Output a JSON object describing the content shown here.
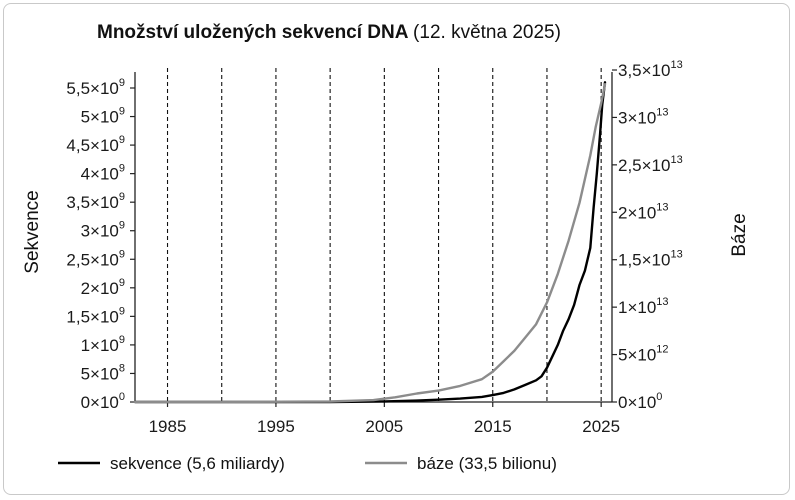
{
  "chart_data": {
    "type": "line",
    "title": "Množství uložených sekvencí DNA",
    "subtitle": "(12. května 2025)",
    "ylabel_left": "Sekvence",
    "ylabel_right": "Báze",
    "x_ticks": [
      "1985",
      "1995",
      "2005",
      "2015",
      "2025"
    ],
    "x_tick_values": [
      1985,
      1995,
      2005,
      2015,
      2025
    ],
    "dashed_years": [
      1985,
      1990,
      1995,
      2000,
      2005,
      2010,
      2015,
      2020,
      2025
    ],
    "xlim": [
      1982,
      2026
    ],
    "ylim_left": [
      0,
      5500000000
    ],
    "ylim_right": [
      0,
      35000000000000
    ],
    "y_left_ticks": [
      {
        "mant": "0×10",
        "exp": "0",
        "value": 0
      },
      {
        "mant": "5×10",
        "exp": "8",
        "value": 500000000
      },
      {
        "mant": "1×10",
        "exp": "9",
        "value": 1000000000
      },
      {
        "mant": "1,5×10",
        "exp": "9",
        "value": 1500000000
      },
      {
        "mant": "2×10",
        "exp": "9",
        "value": 2000000000
      },
      {
        "mant": "2,5×10",
        "exp": "9",
        "value": 2500000000
      },
      {
        "mant": "3×10",
        "exp": "9",
        "value": 3000000000
      },
      {
        "mant": "3,5×10",
        "exp": "9",
        "value": 3500000000
      },
      {
        "mant": "4×10",
        "exp": "9",
        "value": 4000000000
      },
      {
        "mant": "4,5×10",
        "exp": "9",
        "value": 4500000000
      },
      {
        "mant": "5×10",
        "exp": "9",
        "value": 5000000000
      },
      {
        "mant": "5,5×10",
        "exp": "9",
        "value": 5500000000
      }
    ],
    "y_right_ticks": [
      {
        "mant": "0×10",
        "exp": "0",
        "value": 0
      },
      {
        "mant": "5×10",
        "exp": "12",
        "value": 5000000000000
      },
      {
        "mant": "1×10",
        "exp": "13",
        "value": 10000000000000
      },
      {
        "mant": "1,5×10",
        "exp": "13",
        "value": 15000000000000
      },
      {
        "mant": "2×10",
        "exp": "13",
        "value": 20000000000000
      },
      {
        "mant": "2,5×10",
        "exp": "13",
        "value": 25000000000000
      },
      {
        "mant": "3×10",
        "exp": "13",
        "value": 30000000000000
      },
      {
        "mant": "3,5×10",
        "exp": "13",
        "value": 35000000000000
      }
    ],
    "series": [
      {
        "name": "sekvence (5,6 miliardy)",
        "axis": "left",
        "color": "#000000",
        "x": [
          1982,
          1990,
          2000,
          2005,
          2008,
          2010,
          2012,
          2014,
          2015,
          2016,
          2017,
          2018,
          2019,
          2019.5,
          2020,
          2020.5,
          2021,
          2021.5,
          2022,
          2022.5,
          2023,
          2023.5,
          2024,
          2024.3,
          2024.6,
          2024.9,
          2025.1,
          2025.35
        ],
        "y": [
          0,
          0,
          0,
          10000000,
          25000000,
          40000000,
          60000000,
          90000000,
          120000000,
          160000000,
          220000000,
          300000000,
          380000000,
          450000000,
          600000000,
          800000000,
          1000000000,
          1250000000,
          1450000000,
          1700000000,
          2050000000,
          2300000000,
          2700000000,
          3400000000,
          4000000000,
          4700000000,
          5200000000,
          5600000000
        ]
      },
      {
        "name": "báze (33,5 bilionu)",
        "axis": "right",
        "color": "#8c8c8c",
        "x": [
          1982,
          1990,
          2000,
          2004,
          2006,
          2008,
          2010,
          2012,
          2014,
          2015,
          2016,
          2017,
          2018,
          2019,
          2020,
          2021,
          2022,
          2023,
          2023.5,
          2024,
          2024.5,
          2025,
          2025.35
        ],
        "y": [
          0,
          0,
          50000000000,
          200000000000,
          500000000000,
          900000000000,
          1200000000000,
          1700000000000,
          2400000000000,
          3200000000000,
          4300000000000,
          5400000000000,
          6800000000000,
          8200000000000,
          10500000000000,
          13500000000000,
          17000000000000,
          21000000000000,
          23500000000000,
          26000000000000,
          29000000000000,
          31500000000000,
          33500000000000
        ]
      }
    ],
    "legend": {
      "placement": "bottom"
    },
    "grid": false
  }
}
